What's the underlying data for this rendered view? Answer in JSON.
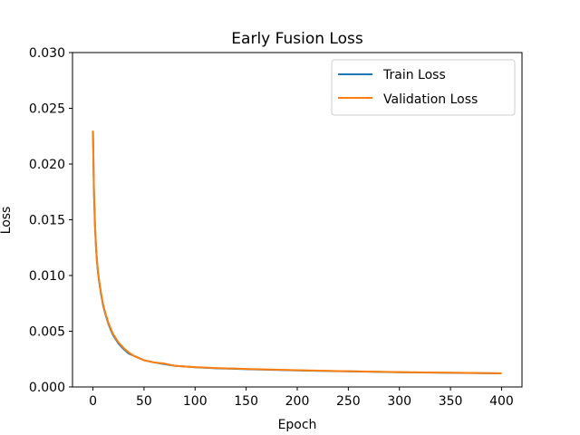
{
  "chart_data": {
    "type": "line",
    "title": "Early Fusion Loss",
    "xlabel": "Epoch",
    "ylabel": "Loss",
    "xlim": [
      -20,
      420
    ],
    "ylim": [
      0,
      0.03
    ],
    "xticks": [
      0,
      50,
      100,
      150,
      200,
      250,
      300,
      350,
      400
    ],
    "xtick_labels": [
      "0",
      "50",
      "100",
      "150",
      "200",
      "250",
      "300",
      "350",
      "400"
    ],
    "yticks": [
      0,
      0.005,
      0.01,
      0.015,
      0.02,
      0.025,
      0.03
    ],
    "ytick_labels": [
      "0.000",
      "0.005",
      "0.010",
      "0.015",
      "0.020",
      "0.025",
      "0.030"
    ],
    "grid": false,
    "legend_position": "top-right",
    "series": [
      {
        "name": "Train Loss",
        "color": "#1f77b4",
        "x": [
          0,
          1,
          2,
          3,
          4,
          5,
          6,
          8,
          10,
          12,
          15,
          18,
          20,
          25,
          30,
          35,
          40,
          50,
          60,
          70,
          80,
          100,
          120,
          150,
          200,
          250,
          300,
          350,
          400
        ],
        "y": [
          0.0229,
          0.0175,
          0.0145,
          0.0125,
          0.0112,
          0.0102,
          0.0095,
          0.0083,
          0.0073,
          0.0066,
          0.0057,
          0.005,
          0.0046,
          0.0039,
          0.0034,
          0.003,
          0.0028,
          0.0024,
          0.0022,
          0.00205,
          0.0019,
          0.00177,
          0.00168,
          0.0016,
          0.00148,
          0.0014,
          0.00132,
          0.00127,
          0.00122
        ]
      },
      {
        "name": "Validation Loss",
        "color": "#ff7f0e",
        "x": [
          0,
          1,
          2,
          3,
          4,
          5,
          6,
          8,
          10,
          12,
          15,
          18,
          20,
          25,
          30,
          35,
          40,
          50,
          60,
          70,
          80,
          100,
          120,
          150,
          200,
          250,
          300,
          350,
          400
        ],
        "y": [
          0.023,
          0.0176,
          0.0146,
          0.0126,
          0.0113,
          0.0103,
          0.0096,
          0.0084,
          0.0074,
          0.0067,
          0.0058,
          0.0051,
          0.0047,
          0.004,
          0.0035,
          0.0031,
          0.0028,
          0.0024,
          0.0022,
          0.0021,
          0.0019,
          0.00178,
          0.0017,
          0.00162,
          0.0015,
          0.00141,
          0.00133,
          0.00128,
          0.00123
        ]
      }
    ]
  }
}
